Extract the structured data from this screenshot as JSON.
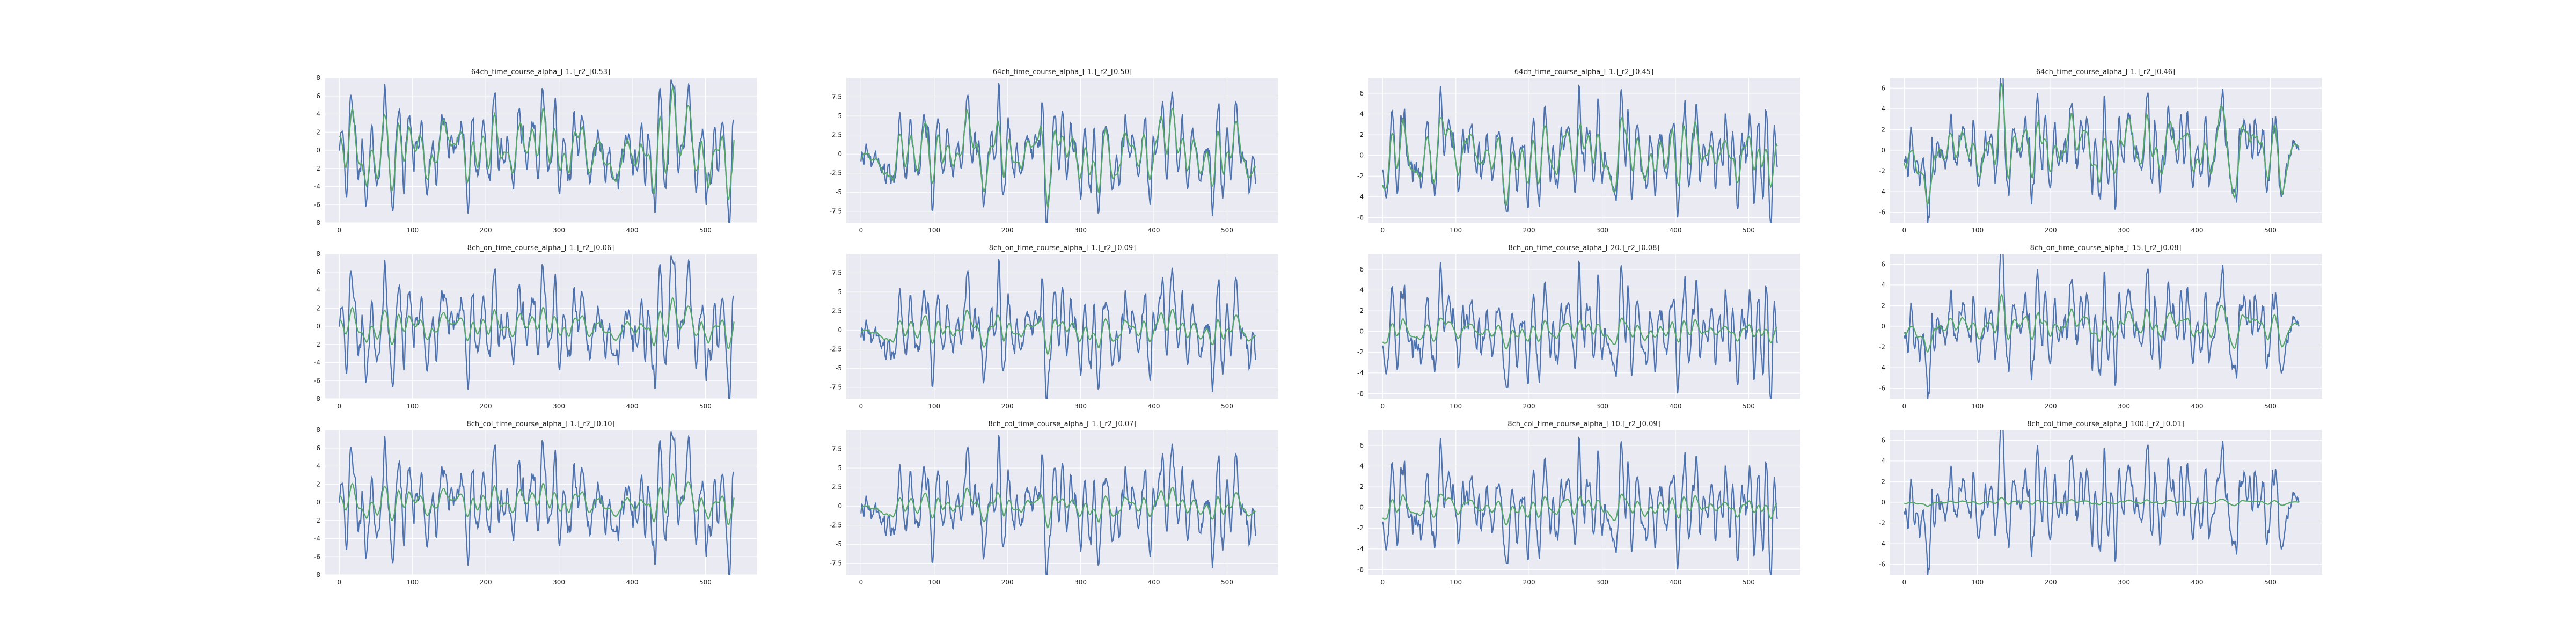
{
  "figure": {
    "background": "#ffffff",
    "axes_background": "#eaeaf2",
    "style": "seaborn-darkgrid"
  },
  "colors": {
    "series_a": "#4c72b0",
    "series_b": "#55a868"
  },
  "chart_data": [
    {
      "type": "line",
      "title": "64ch_time_course_alpha_[ 1.]_r2_[0.53]",
      "xlim": [
        -20,
        570
      ],
      "ylim": [
        -8,
        8
      ],
      "xticks": [
        0,
        100,
        200,
        300,
        400,
        500
      ],
      "yticks": [
        -8,
        -6,
        -4,
        -2,
        0,
        2,
        4,
        6,
        8
      ],
      "amp_a": 3.0,
      "amp_b": 2.0,
      "seed": 11,
      "grid": true,
      "series": [
        {
          "color": "#4c72b0"
        },
        {
          "color": "#55a868"
        }
      ]
    },
    {
      "type": "line",
      "title": "64ch_time_course_alpha_[ 1.]_r2_[0.50]",
      "xlim": [
        -20,
        570
      ],
      "ylim": [
        -9,
        10
      ],
      "xticks": [
        0,
        100,
        200,
        300,
        400,
        500
      ],
      "yticks": [
        -7.5,
        -5.0,
        -2.5,
        0.0,
        2.5,
        5.0,
        7.5
      ],
      "amp_a": 3.2,
      "amp_b": 2.2,
      "seed": 12,
      "grid": true,
      "series": [
        {
          "color": "#4c72b0"
        },
        {
          "color": "#55a868"
        }
      ]
    },
    {
      "type": "line",
      "title": "64ch_time_course_alpha_[ 1.]_r2_[0.45]",
      "xlim": [
        -20,
        570
      ],
      "ylim": [
        -6.5,
        7.5
      ],
      "xticks": [
        0,
        100,
        200,
        300,
        400,
        500
      ],
      "yticks": [
        -6,
        -4,
        -2,
        0,
        2,
        4,
        6
      ],
      "amp_a": 2.5,
      "amp_b": 1.7,
      "seed": 13,
      "grid": true,
      "series": [
        {
          "color": "#4c72b0"
        },
        {
          "color": "#55a868"
        }
      ]
    },
    {
      "type": "line",
      "title": "64ch_time_course_alpha_[ 1.]_r2_[0.46]",
      "xlim": [
        -20,
        570
      ],
      "ylim": [
        -7,
        7
      ],
      "xticks": [
        0,
        100,
        200,
        300,
        400,
        500
      ],
      "yticks": [
        -6,
        -4,
        -2,
        0,
        2,
        4,
        6
      ],
      "amp_a": 2.4,
      "amp_b": 1.7,
      "seed": 14,
      "grid": true,
      "series": [
        {
          "color": "#4c72b0"
        },
        {
          "color": "#55a868"
        }
      ]
    },
    {
      "type": "line",
      "title": "8ch_on_time_course_alpha_[ 1.]_r2_[0.06]",
      "xlim": [
        -20,
        570
      ],
      "ylim": [
        -8,
        8
      ],
      "xticks": [
        0,
        100,
        200,
        300,
        400,
        500
      ],
      "yticks": [
        -8,
        -6,
        -4,
        -2,
        0,
        2,
        4,
        6,
        8
      ],
      "amp_a": 3.0,
      "amp_b": 0.9,
      "seed": 11,
      "grid": true,
      "series": [
        {
          "color": "#4c72b0"
        },
        {
          "color": "#55a868"
        }
      ]
    },
    {
      "type": "line",
      "title": "8ch_on_time_course_alpha_[ 1.]_r2_[0.09]",
      "xlim": [
        -20,
        570
      ],
      "ylim": [
        -9,
        10
      ],
      "xticks": [
        0,
        100,
        200,
        300,
        400,
        500
      ],
      "yticks": [
        -7.5,
        -5.0,
        -2.5,
        0.0,
        2.5,
        5.0,
        7.5
      ],
      "amp_a": 3.2,
      "amp_b": 1.0,
      "seed": 12,
      "grid": true,
      "series": [
        {
          "color": "#4c72b0"
        },
        {
          "color": "#55a868"
        }
      ]
    },
    {
      "type": "line",
      "title": "8ch_on_time_course_alpha_[ 20.]_r2_[0.08]",
      "xlim": [
        -20,
        570
      ],
      "ylim": [
        -6.5,
        7.5
      ],
      "xticks": [
        0,
        100,
        200,
        300,
        400,
        500
      ],
      "yticks": [
        -6,
        -4,
        -2,
        0,
        2,
        4,
        6
      ],
      "amp_a": 2.5,
      "amp_b": 0.6,
      "seed": 13,
      "grid": true,
      "series": [
        {
          "color": "#4c72b0"
        },
        {
          "color": "#55a868"
        }
      ]
    },
    {
      "type": "line",
      "title": "8ch_on_time_course_alpha_[ 15.]_r2_[0.08]",
      "xlim": [
        -20,
        570
      ],
      "ylim": [
        -7,
        7
      ],
      "xticks": [
        0,
        100,
        200,
        300,
        400,
        500
      ],
      "yticks": [
        -6,
        -4,
        -2,
        0,
        2,
        4,
        6
      ],
      "amp_a": 2.4,
      "amp_b": 0.8,
      "seed": 14,
      "grid": true,
      "series": [
        {
          "color": "#4c72b0"
        },
        {
          "color": "#55a868"
        }
      ]
    },
    {
      "type": "line",
      "title": "8ch_col_time_course_alpha_[ 1.]_r2_[0.10]",
      "xlim": [
        -20,
        570
      ],
      "ylim": [
        -8,
        8
      ],
      "xticks": [
        0,
        100,
        200,
        300,
        400,
        500
      ],
      "yticks": [
        -8,
        -6,
        -4,
        -2,
        0,
        2,
        4,
        6,
        8
      ],
      "amp_a": 3.0,
      "amp_b": 0.9,
      "seed": 11,
      "grid": true,
      "series": [
        {
          "color": "#4c72b0"
        },
        {
          "color": "#55a868"
        }
      ]
    },
    {
      "type": "line",
      "title": "8ch_col_time_course_alpha_[ 1.]_r2_[0.07]",
      "xlim": [
        -20,
        570
      ],
      "ylim": [
        -9,
        10
      ],
      "xticks": [
        0,
        100,
        200,
        300,
        400,
        500
      ],
      "yticks": [
        -7.5,
        -5.0,
        -2.5,
        0.0,
        2.5,
        5.0,
        7.5
      ],
      "amp_a": 3.2,
      "amp_b": 0.9,
      "seed": 12,
      "grid": true,
      "series": [
        {
          "color": "#4c72b0"
        },
        {
          "color": "#55a868"
        }
      ]
    },
    {
      "type": "line",
      "title": "8ch_col_time_course_alpha_[ 10.]_r2_[0.09]",
      "xlim": [
        -20,
        570
      ],
      "ylim": [
        -6.5,
        7.5
      ],
      "xticks": [
        0,
        100,
        200,
        300,
        400,
        500
      ],
      "yticks": [
        -6,
        -4,
        -2,
        0,
        2,
        4,
        6
      ],
      "amp_a": 2.5,
      "amp_b": 0.6,
      "seed": 13,
      "grid": true,
      "series": [
        {
          "color": "#4c72b0"
        },
        {
          "color": "#55a868"
        }
      ]
    },
    {
      "type": "line",
      "title": "8ch_col_time_course_alpha_[ 100.]_r2_[0.01]",
      "xlim": [
        -20,
        570
      ],
      "ylim": [
        -7,
        7
      ],
      "xticks": [
        0,
        100,
        200,
        300,
        400,
        500
      ],
      "yticks": [
        -6,
        -4,
        -2,
        0,
        2,
        4,
        6
      ],
      "amp_a": 2.4,
      "amp_b": 0.12,
      "seed": 14,
      "grid": true,
      "series": [
        {
          "color": "#4c72b0"
        },
        {
          "color": "#55a868"
        }
      ]
    }
  ]
}
